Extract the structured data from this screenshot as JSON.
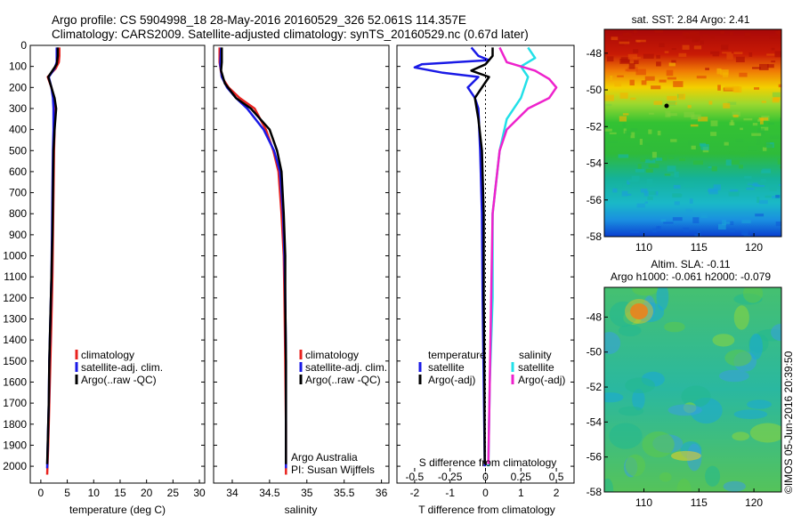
{
  "title_line1": "Argo profile: CS 5904998_18 28-May-2016 20160529_326 52.061S 114.357E",
  "title_line2": "Climatology: CARS2009. Satellite-adjusted climatology: synTS_20160529.nc (0.67d later)",
  "credit": "©IMOS 05-Jun-2016 20:39:50",
  "depth_ticks": [
    0,
    100,
    200,
    300,
    400,
    500,
    600,
    700,
    800,
    900,
    1000,
    1100,
    1200,
    1300,
    1400,
    1500,
    1600,
    1700,
    1800,
    1900,
    2000
  ],
  "colors": {
    "climatology": "#e8231f",
    "satellite": "#1a1ae6",
    "argo": "#000000",
    "sal_satellite": "#22e0e8",
    "sal_argo": "#ee22cc"
  },
  "chart_data": [
    {
      "type": "line",
      "id": "temperature",
      "xlabel": "temperature (deg C)",
      "xlim": [
        -2,
        31
      ],
      "xticks": [
        0,
        5,
        10,
        15,
        20,
        25,
        30
      ],
      "ylim": [
        2080,
        0
      ],
      "legend": [
        "climatology",
        "satellite-adj. clim.",
        "Argo(..raw -QC)"
      ],
      "series": [
        {
          "name": "climatology",
          "points": [
            [
              3.5,
              10
            ],
            [
              3.5,
              50
            ],
            [
              3.4,
              80
            ],
            [
              2.8,
              110
            ],
            [
              1.3,
              150
            ],
            [
              2.0,
              200
            ],
            [
              2.5,
              250
            ],
            [
              2.6,
              300
            ],
            [
              2.6,
              400
            ],
            [
              2.5,
              500
            ],
            [
              2.4,
              700
            ],
            [
              2.3,
              900
            ],
            [
              2.2,
              1100
            ],
            [
              2.0,
              1300
            ],
            [
              1.8,
              1500
            ],
            [
              1.6,
              1700
            ],
            [
              1.4,
              1900
            ],
            [
              1.2,
              2040
            ]
          ]
        },
        {
          "name": "satellite-adj. clim.",
          "points": [
            [
              3.0,
              10
            ],
            [
              3.0,
              50
            ],
            [
              3.0,
              80
            ],
            [
              2.6,
              110
            ],
            [
              1.5,
              150
            ],
            [
              2.0,
              200
            ],
            [
              2.3,
              250
            ],
            [
              2.4,
              300
            ],
            [
              2.4,
              400
            ],
            [
              2.3,
              500
            ],
            [
              2.2,
              700
            ],
            [
              2.1,
              900
            ],
            [
              2.0,
              1100
            ],
            [
              1.8,
              1300
            ],
            [
              1.6,
              1500
            ],
            [
              1.5,
              1700
            ],
            [
              1.3,
              1900
            ],
            [
              1.2,
              2010
            ]
          ]
        },
        {
          "name": "Argo(..raw -QC)",
          "points": [
            [
              3.2,
              10
            ],
            [
              3.2,
              50
            ],
            [
              3.0,
              90
            ],
            [
              2.2,
              120
            ],
            [
              1.4,
              150
            ],
            [
              2.0,
              200
            ],
            [
              2.6,
              250
            ],
            [
              2.9,
              300
            ],
            [
              2.6,
              400
            ],
            [
              2.4,
              500
            ],
            [
              2.3,
              700
            ],
            [
              2.2,
              900
            ],
            [
              2.0,
              1100
            ],
            [
              1.8,
              1300
            ],
            [
              1.6,
              1500
            ],
            [
              1.5,
              1700
            ],
            [
              1.3,
              1900
            ],
            [
              1.2,
              1990
            ]
          ]
        }
      ]
    },
    {
      "type": "line",
      "id": "salinity",
      "xlabel": "salinity",
      "xlim": [
        33.75,
        36.1
      ],
      "xticks": [
        34,
        34.5,
        35,
        35.5,
        36
      ],
      "xtick_labels": [
        "34",
        "34.5",
        "35",
        "35.5",
        "36"
      ],
      "ylim": [
        2080,
        0
      ],
      "legend": [
        "climatology",
        "satellite-adj. clim.",
        "Argo(..raw -QC)"
      ],
      "annotation": [
        "Argo Australia",
        "PI: Susan Wijffels"
      ],
      "series": [
        {
          "name": "climatology",
          "points": [
            [
              33.83,
              10
            ],
            [
              33.83,
              80
            ],
            [
              33.86,
              150
            ],
            [
              33.95,
              200
            ],
            [
              34.1,
              250
            ],
            [
              34.3,
              300
            ],
            [
              34.45,
              400
            ],
            [
              34.55,
              500
            ],
            [
              34.62,
              600
            ],
            [
              34.66,
              800
            ],
            [
              34.69,
              1000
            ],
            [
              34.7,
              1200
            ],
            [
              34.71,
              1500
            ],
            [
              34.72,
              1800
            ],
            [
              34.72,
              2040
            ]
          ]
        },
        {
          "name": "satellite-adj. clim.",
          "points": [
            [
              33.85,
              10
            ],
            [
              33.84,
              90
            ],
            [
              33.86,
              150
            ],
            [
              33.93,
              200
            ],
            [
              34.05,
              250
            ],
            [
              34.2,
              300
            ],
            [
              34.42,
              400
            ],
            [
              34.56,
              500
            ],
            [
              34.64,
              600
            ],
            [
              34.68,
              800
            ],
            [
              34.7,
              1000
            ],
            [
              34.71,
              1200
            ],
            [
              34.72,
              1500
            ],
            [
              34.72,
              1800
            ],
            [
              34.72,
              2010
            ]
          ]
        },
        {
          "name": "Argo(..raw -QC)",
          "points": [
            [
              33.86,
              10
            ],
            [
              33.86,
              80
            ],
            [
              33.85,
              120
            ],
            [
              33.9,
              180
            ],
            [
              34.05,
              250
            ],
            [
              34.25,
              300
            ],
            [
              34.5,
              400
            ],
            [
              34.6,
              500
            ],
            [
              34.66,
              600
            ],
            [
              34.69,
              800
            ],
            [
              34.71,
              1000
            ],
            [
              34.71,
              1200
            ],
            [
              34.72,
              1500
            ],
            [
              34.72,
              1800
            ],
            [
              34.72,
              1990
            ]
          ]
        }
      ]
    },
    {
      "type": "line",
      "id": "differences",
      "xlabel": "T difference from climatology",
      "top_xlabel": "S difference from climatology",
      "xlim": [
        -2.5,
        2.5
      ],
      "xticks": [
        -2,
        -1,
        0,
        1,
        2
      ],
      "top_xticks": [
        -0.5,
        -0.25,
        0,
        0.25,
        0.5
      ],
      "ylim": [
        2080,
        0
      ],
      "legend_groups": [
        {
          "title": "temperature",
          "entries": [
            "satellite",
            "Argo(-adj)"
          ]
        },
        {
          "title": "salinity",
          "entries": [
            "satellite",
            "Argo(-adj)"
          ]
        }
      ],
      "series": [
        {
          "name": "temperature satellite",
          "points": [
            [
              -0.4,
              10
            ],
            [
              -0.2,
              50
            ],
            [
              0.1,
              70
            ],
            [
              -1.8,
              90
            ],
            [
              -2.0,
              105
            ],
            [
              -1.2,
              130
            ],
            [
              -0.2,
              150
            ],
            [
              -0.5,
              200
            ],
            [
              -0.3,
              250
            ],
            [
              -0.2,
              300
            ],
            [
              -0.15,
              500
            ],
            [
              -0.1,
              800
            ],
            [
              -0.08,
              1200
            ],
            [
              -0.05,
              1600
            ],
            [
              -0.02,
              2000
            ]
          ]
        },
        {
          "name": "temperature Argo(-adj)",
          "points": [
            [
              0.2,
              10
            ],
            [
              0.2,
              50
            ],
            [
              0.0,
              90
            ],
            [
              -0.4,
              120
            ],
            [
              0.1,
              150
            ],
            [
              -0.3,
              250
            ],
            [
              -0.2,
              350
            ],
            [
              -0.1,
              500
            ],
            [
              -0.05,
              800
            ],
            [
              -0.05,
              1200
            ],
            [
              -0.03,
              1600
            ],
            [
              -0.02,
              1990
            ]
          ]
        },
        {
          "name": "salinity satellite",
          "points": [
            [
              0.3,
              10
            ],
            [
              0.35,
              60
            ],
            [
              0.25,
              100
            ],
            [
              0.3,
              150
            ],
            [
              0.25,
              250
            ],
            [
              0.15,
              350
            ],
            [
              0.1,
              500
            ],
            [
              0.05,
              800
            ],
            [
              0.05,
              1200
            ],
            [
              0.03,
              1600
            ],
            [
              0.02,
              2000
            ]
          ]
        },
        {
          "name": "salinity Argo(-adj)",
          "points": [
            [
              0.1,
              10
            ],
            [
              0.15,
              80
            ],
            [
              0.35,
              120
            ],
            [
              0.45,
              160
            ],
            [
              0.5,
              200
            ],
            [
              0.45,
              250
            ],
            [
              0.3,
              300
            ],
            [
              0.15,
              400
            ],
            [
              0.1,
              500
            ],
            [
              0.05,
              800
            ],
            [
              0.04,
              1200
            ],
            [
              0.03,
              1600
            ],
            [
              0.02,
              1990
            ]
          ]
        }
      ]
    },
    {
      "type": "heatmap",
      "id": "sst-map",
      "title": "sat. SST: 2.84 Argo: 2.41",
      "xticks": [
        110,
        115,
        120
      ],
      "yticks": [
        -48,
        -50,
        -52,
        -54,
        -56,
        -58
      ],
      "marker": "Argo profile location (black dot)"
    },
    {
      "type": "heatmap",
      "id": "sla-map",
      "title_line1": "Altim. SLA: -0.11",
      "title_line2": "Argo h1000: -0.061 h2000: -0.079",
      "xticks": [
        110,
        115,
        120
      ],
      "yticks": [
        -48,
        -50,
        -52,
        -54,
        -56,
        -58
      ]
    }
  ]
}
